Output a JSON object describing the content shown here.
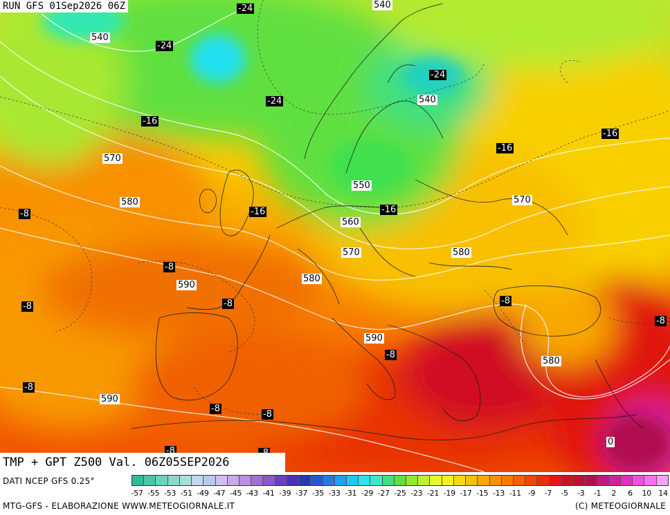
{
  "header": {
    "run": "RUN GFS 01Sep2026 06Z"
  },
  "title": "TMP + GPT Z500 Val. 06Z05SEP2026",
  "footer": {
    "data_source": "DATI NCEP GFS 0.25°",
    "credit_left": "MTG-GFS - ELABORAZIONE WWW.METEOGIORNALE.IT",
    "credit_right": "(C) METEOGIORNALE"
  },
  "legend": {
    "ticks": [
      "-57",
      "-55",
      "-53",
      "-51",
      "-49",
      "-47",
      "-45",
      "-43",
      "-41",
      "-39",
      "-37",
      "-35",
      "-33",
      "-31",
      "-29",
      "-27",
      "-25",
      "-23",
      "-21",
      "-19",
      "-17",
      "-15",
      "-13",
      "-11",
      "-9",
      "-7",
      "-5",
      "-3",
      "-1",
      "2",
      "6",
      "10",
      "14"
    ],
    "colors": [
      "#2fb89a",
      "#4cc6a8",
      "#6ad3b8",
      "#8ad9c8",
      "#a8dfd8",
      "#c0d8e8",
      "#b8c8f0",
      "#d0c0f0",
      "#c8a8e8",
      "#b890e0",
      "#a070d8",
      "#8858d0",
      "#6a40c8",
      "#4a30b8",
      "#2838b0",
      "#2858d0",
      "#2878e0",
      "#20a0f0",
      "#20c8f8",
      "#30e0f0",
      "#40e8c8",
      "#40e080",
      "#60e040",
      "#90e830",
      "#c0f030",
      "#e8f830",
      "#f8f020",
      "#f8d810",
      "#f8c000",
      "#f8a800",
      "#f89000",
      "#f87800",
      "#f86000",
      "#f04800",
      "#e83000",
      "#e01810",
      "#d01020",
      "#c01030",
      "#b01050",
      "#c01880",
      "#d020a0",
      "#e030c0",
      "#f050e0",
      "#f870f0",
      "#f8a0f8"
    ]
  },
  "labels": {
    "gpt": [
      "540",
      "540",
      "540",
      "570",
      "580",
      "550",
      "560",
      "570",
      "570",
      "580",
      "580",
      "590",
      "590",
      "580",
      "590",
      "0"
    ],
    "tmp": [
      "-24",
      "-24",
      "-24",
      "-24",
      "-16",
      "-16",
      "-16",
      "-16",
      "-16",
      "-8",
      "-8",
      "-8",
      "-8",
      "-8",
      "-8",
      "-8",
      "-8",
      "-8",
      "-8",
      "-8",
      "-8"
    ]
  }
}
